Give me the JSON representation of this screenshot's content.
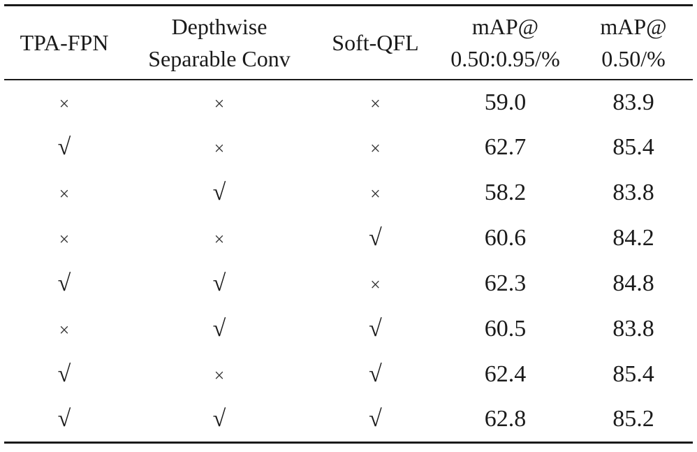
{
  "table": {
    "headers": [
      [
        "TPA-FPN"
      ],
      [
        "Depthwise",
        "Separable Conv"
      ],
      [
        "Soft-QFL"
      ],
      [
        "mAP@",
        "0.50:0.95/%"
      ],
      [
        "mAP@",
        "0.50/%"
      ]
    ],
    "rows": [
      [
        "×",
        "×",
        "×",
        "59.0",
        "83.9"
      ],
      [
        "√",
        "×",
        "×",
        "62.7",
        "85.4"
      ],
      [
        "×",
        "√",
        "×",
        "58.2",
        "83.8"
      ],
      [
        "×",
        "×",
        "√",
        "60.6",
        "84.2"
      ],
      [
        "√",
        "√",
        "×",
        "62.3",
        "84.8"
      ],
      [
        "×",
        "√",
        "√",
        "60.5",
        "83.8"
      ],
      [
        "√",
        "×",
        "√",
        "62.4",
        "85.4"
      ],
      [
        "√",
        "√",
        "√",
        "62.8",
        "85.2"
      ]
    ]
  }
}
